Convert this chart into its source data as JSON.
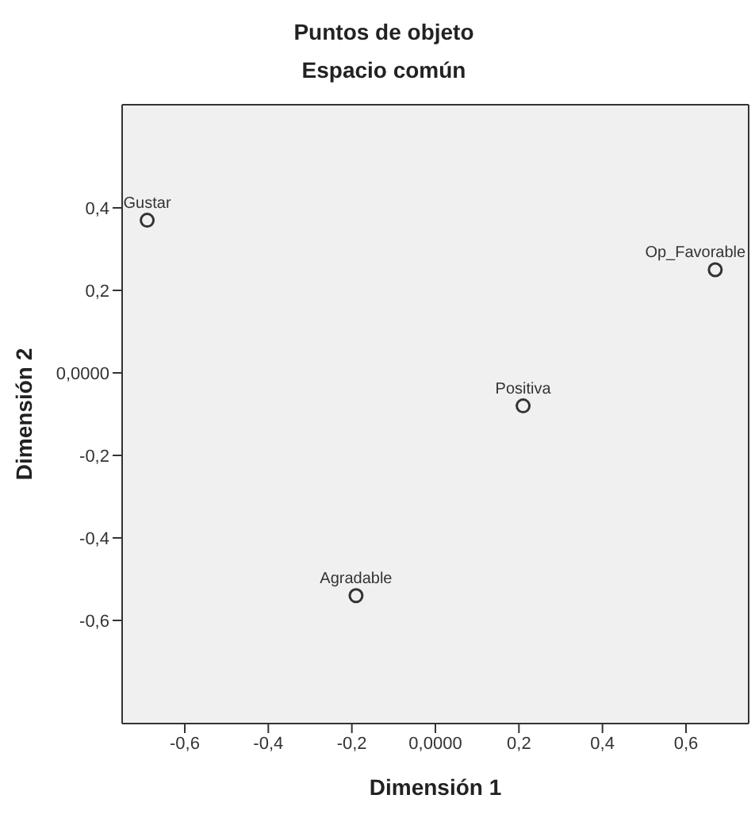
{
  "chart_data": {
    "type": "scatter",
    "title": "Puntos de objeto",
    "subtitle": "Espacio común",
    "xlabel": "Dimensión 1",
    "ylabel": "Dimensión 2",
    "x": [
      -0.69,
      0.67,
      0.21,
      -0.19
    ],
    "values": [
      0.37,
      0.25,
      -0.08,
      -0.54
    ],
    "color": "#333333",
    "marker": "circle",
    "grid": false,
    "xlim": [
      -0.75,
      0.75
    ],
    "xticks": [
      {
        "value": -0.6,
        "label": "-0,6"
      },
      {
        "value": -0.4,
        "label": "-0,4"
      },
      {
        "value": -0.2,
        "label": "-0,2"
      },
      {
        "value": 0,
        "label": "0,0000"
      },
      {
        "value": 0.2,
        "label": "0,2"
      },
      {
        "value": 0.4,
        "label": "0,4"
      },
      {
        "value": 0.6,
        "label": "0,6"
      }
    ],
    "ylim": [
      -0.85,
      0.65
    ],
    "yticks": [
      {
        "value": -0.6,
        "label": "-0,6"
      },
      {
        "value": -0.4,
        "label": "-0,4"
      },
      {
        "value": -0.2,
        "label": "-0,2"
      },
      {
        "value": 0,
        "label": "0,0000"
      },
      {
        "value": 0.2,
        "label": "0,2"
      },
      {
        "value": 0.4,
        "label": "0,4"
      }
    ],
    "annotations": [
      {
        "text": "Gustar",
        "x": -0.69,
        "y": 0.37
      },
      {
        "text": "Op_Favorable",
        "x": 0.67,
        "y": 0.25
      },
      {
        "text": "Positiva",
        "x": 0.21,
        "y": -0.08
      },
      {
        "text": "Agradable",
        "x": -0.19,
        "y": -0.54
      }
    ]
  }
}
